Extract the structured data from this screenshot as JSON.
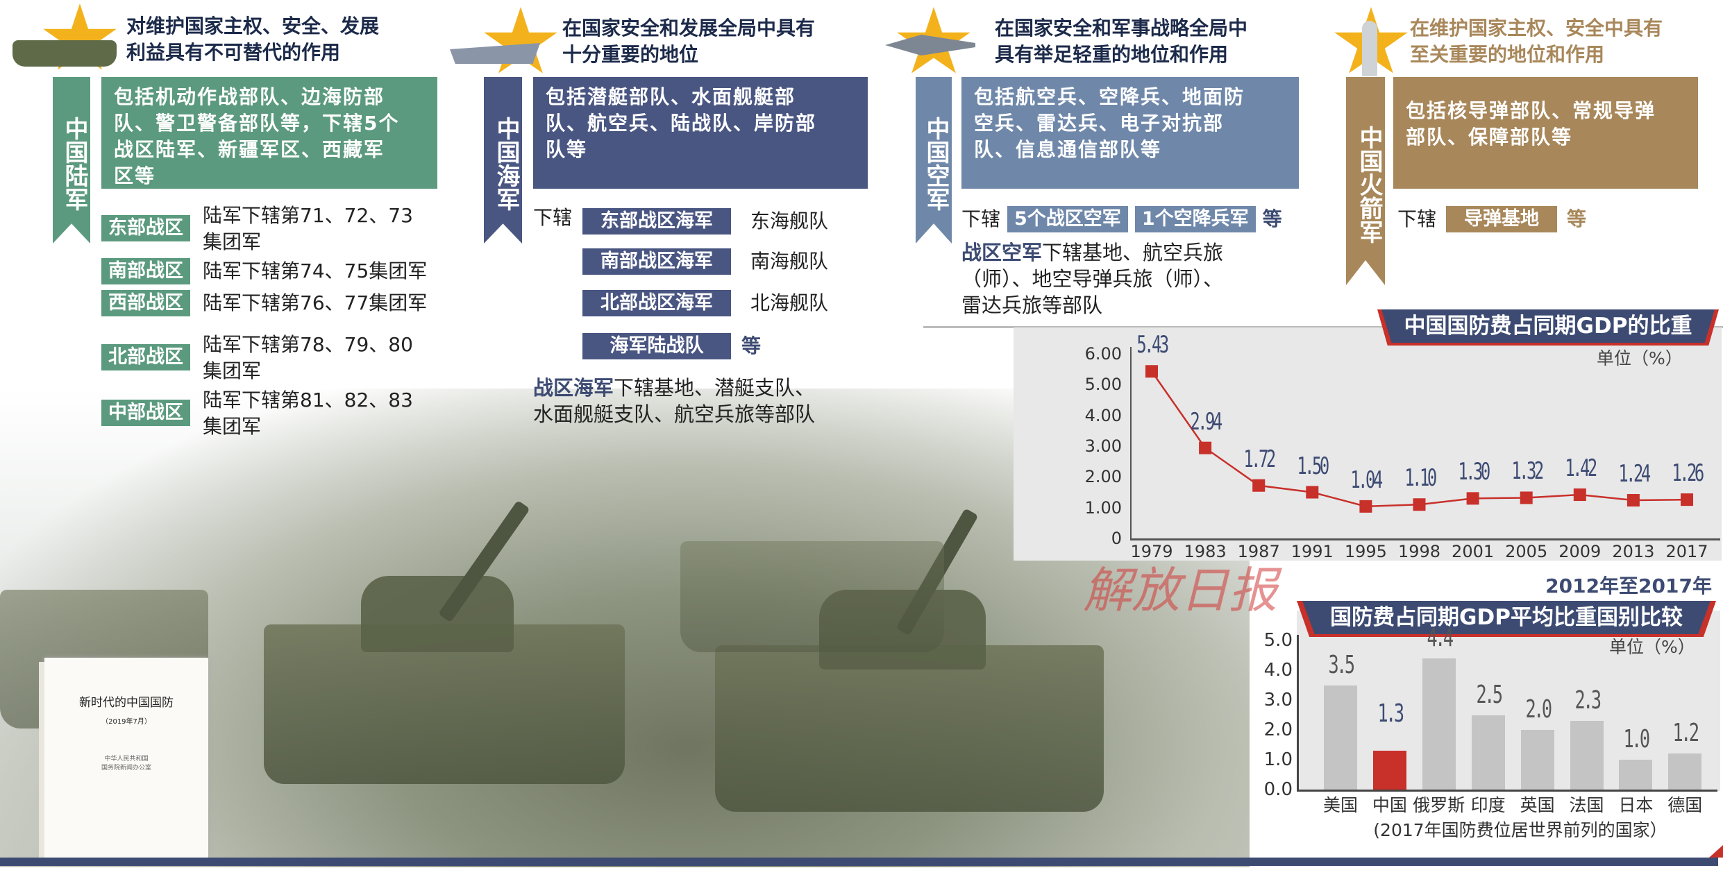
{
  "colors": {
    "army": "#5b9a7e",
    "navy": "#4a5682",
    "airforce": "#6f88aa",
    "rocket": "#a8875a",
    "accent_red": "#c8302a",
    "banner": "#3d4b73"
  },
  "army": {
    "icon": "tank-star-icon",
    "title": [
      "对维护国家主权、安全、发展",
      "利益具有不可替代的作用"
    ],
    "ribbon": "中国陆军",
    "box": [
      "包括机动作战部队、边海防部",
      "队、警卫警备部队等，下辖5个",
      "战区陆军、新疆军区、西藏军",
      "区等"
    ],
    "districts": [
      {
        "label": "东部战区",
        "desc": [
          "陆军下辖第71、72、73",
          "集团军"
        ]
      },
      {
        "label": "南部战区",
        "desc": [
          "陆军下辖第74、75集团军"
        ]
      },
      {
        "label": "西部战区",
        "desc": [
          "陆军下辖第76、77集团军"
        ]
      },
      {
        "label": "北部战区",
        "desc": [
          "陆军下辖第78、79、80",
          "集团军"
        ]
      },
      {
        "label": "中部战区",
        "desc": [
          "陆军下辖第81、82、83",
          "集团军"
        ]
      }
    ]
  },
  "navy": {
    "icon": "warship-star-icon",
    "title": [
      "在国家安全和发展全局中具有",
      "十分重要的地位"
    ],
    "ribbon": "中国海军",
    "box": [
      "包括潜艇部队、水面舰艇部",
      "队、航空兵、陆战队、岸防部",
      "队等"
    ],
    "sub_prefix": "下辖",
    "fleets": [
      {
        "label": "东部战区海军",
        "desc": "东海舰队"
      },
      {
        "label": "南部战区海军",
        "desc": "南海舰队"
      },
      {
        "label": "北部战区海军",
        "desc": "北海舰队"
      },
      {
        "label": "海军陆战队",
        "desc": "等"
      }
    ],
    "bottom_bold": "战区海军",
    "bottom": [
      "下辖基地、潜艇支队、",
      "水面舰艇支队、航空兵旅等部队"
    ]
  },
  "airforce": {
    "icon": "fighter-jet-star-icon",
    "title": [
      "在国家安全和军事战略全局中",
      "具有举足轻重的地位和作用"
    ],
    "ribbon": "中国空军",
    "box": [
      "包括航空兵、空降兵、地面防",
      "空兵、雷达兵、电子对抗部",
      "队、信息通信部队等"
    ],
    "sub_prefix": "下辖",
    "tags": [
      "5个战区空军",
      "1个空降兵军"
    ],
    "etc": "等",
    "bottom_bold": "战区空军",
    "bottom": [
      "下辖基地、航空兵旅",
      "（师）、地空导弹兵旅（师）、",
      "雷达兵旅等部队"
    ]
  },
  "rocket": {
    "icon": "missile-star-icon",
    "title": [
      "在维护国家主权、安全中具有",
      "至关重要的地位和作用"
    ],
    "ribbon": "中国火箭军",
    "box": [
      "包括核导弹部队、常规导弹",
      "部队、保障部队等"
    ],
    "sub_prefix": "下辖",
    "tags": [
      "导弹基地"
    ],
    "etc": "等"
  },
  "book": {
    "title": "新时代的中国国防",
    "date": "（2019年7月）",
    "publisher": [
      "中华人民共和国",
      "国务院新闻办公室"
    ]
  },
  "watermark": "解放日报",
  "chart_data": [
    {
      "type": "line",
      "title": "中国国防费占同期GDP的比重",
      "unit": "单位（%）",
      "categories": [
        "1979",
        "1983",
        "1987",
        "1991",
        "1995",
        "1998",
        "2001",
        "2005",
        "2009",
        "2013",
        "2017"
      ],
      "values": [
        5.43,
        2.94,
        1.72,
        1.5,
        1.04,
        1.1,
        1.3,
        1.32,
        1.42,
        1.24,
        1.26
      ],
      "value_labels": [
        "5.43",
        "2.94",
        "1.72",
        "1.50",
        "1.04",
        "1.10",
        "1.30",
        "1.32",
        "1.42",
        "1.24",
        "1.26"
      ],
      "yticks": [
        "0",
        "1.00",
        "2.00",
        "3.00",
        "4.00",
        "5.00",
        "6.00"
      ],
      "ylim": [
        0,
        6
      ],
      "grid": false,
      "line_color": "#c8302a"
    },
    {
      "type": "bar",
      "subtitle": "2012年至2017年",
      "title": "国防费占同期GDP平均比重国别比较",
      "unit": "单位（%）",
      "categories": [
        "美国",
        "中国",
        "俄罗斯",
        "印度",
        "英国",
        "法国",
        "日本",
        "德国"
      ],
      "values": [
        3.5,
        1.3,
        4.4,
        2.5,
        2.0,
        2.3,
        1.0,
        1.2
      ],
      "value_labels": [
        "3.5",
        "1.3",
        "4.4",
        "2.5",
        "2.0",
        "2.3",
        "1.0",
        "1.2"
      ],
      "yticks": [
        "0.0",
        "1.0",
        "2.0",
        "3.0",
        "4.0",
        "5.0"
      ],
      "ylim": [
        0,
        5
      ],
      "grid": false,
      "highlight": "中国",
      "bar_color": "#c4c4c4",
      "highlight_color": "#c8302a",
      "xlabel": "(2017年国防费位居世界前列的国家）"
    }
  ]
}
